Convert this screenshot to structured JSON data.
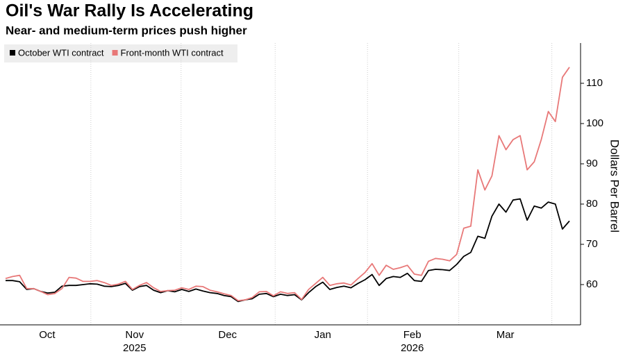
{
  "chart_data": {
    "type": "line",
    "title": "Oil's War Rally Is Accelerating",
    "subtitle": "Near- and medium-term prices push higher",
    "y_axis_label": "Dollars Per Barrel",
    "categories": [
      null,
      null,
      null,
      null,
      null,
      null,
      null,
      null,
      null,
      null,
      null,
      null,
      null,
      null,
      null,
      null,
      null,
      null,
      null,
      null,
      null,
      null,
      null,
      null,
      null,
      null,
      null,
      null,
      null,
      null,
      null,
      null,
      null,
      null,
      null,
      null,
      null,
      null,
      null,
      null,
      null,
      null,
      null,
      null,
      null,
      null,
      null,
      null,
      null,
      null,
      null,
      null,
      null,
      null,
      null,
      null,
      null,
      null,
      null,
      null,
      null,
      null,
      null,
      null,
      null,
      null,
      null,
      null,
      null,
      null,
      null,
      null,
      null,
      null,
      null,
      null,
      null,
      null,
      null,
      null,
      null
    ],
    "xticks": [
      {
        "value": 5.9,
        "label": "Oct"
      },
      {
        "value": 18.3,
        "label": "Nov"
      },
      {
        "value": 31.5,
        "label": "Dec"
      },
      {
        "value": 45.0,
        "label": "Jan"
      },
      {
        "value": 57.7,
        "label": "Feb"
      },
      {
        "value": 70.9,
        "label": "Mar"
      }
    ],
    "year_labels": [
      {
        "value": 18.3,
        "label": "2025"
      },
      {
        "value": 57.7,
        "label": "2026"
      }
    ],
    "ylim": [
      50,
      120
    ],
    "yticks": [
      60,
      70,
      80,
      90,
      100,
      110
    ],
    "grid": true,
    "legend": "top-left",
    "series": [
      {
        "name": "October WTI contract",
        "color": "#000000",
        "values": [
          61,
          61,
          60.7,
          58.8,
          59,
          58.3,
          57.9,
          58.1,
          59.6,
          59.8,
          59.8,
          60,
          60.2,
          60.1,
          59.6,
          59.5,
          59.8,
          60.3,
          58.6,
          59.5,
          59.8,
          58.6,
          58,
          58.5,
          58.2,
          58.8,
          58.3,
          58.9,
          58.4,
          58,
          57.8,
          57.3,
          57,
          55.8,
          56.2,
          56.5,
          57.6,
          57.8,
          57,
          57.6,
          57.3,
          57.5,
          56.2,
          58,
          59.5,
          60.6,
          58.8,
          59.3,
          59.6,
          59.2,
          60.3,
          61.2,
          62.5,
          59.8,
          61.5,
          62,
          61.8,
          62.8,
          61,
          60.8,
          63.5,
          63.8,
          63.7,
          63.5,
          65,
          67,
          68,
          72,
          71.5,
          77,
          80,
          78,
          81,
          81.3,
          76,
          79.5,
          79,
          80.5,
          80,
          73.8,
          75.8
        ]
      },
      {
        "name": "Front-month WTI contract",
        "color": "#e87878",
        "values": [
          61.5,
          62,
          62.3,
          59,
          59,
          58.3,
          57.5,
          57.8,
          59,
          61.8,
          61.6,
          60.8,
          60.8,
          61,
          60.5,
          59.8,
          60.1,
          60.8,
          58.8,
          59.8,
          60.5,
          59.2,
          58.3,
          58.5,
          58.6,
          59.2,
          58.8,
          59.6,
          59.5,
          58.6,
          58.2,
          57.7,
          57.3,
          56,
          56.2,
          56.8,
          58.2,
          58.3,
          57.2,
          58.2,
          57.8,
          58,
          56.3,
          58.8,
          60.3,
          61.8,
          59.8,
          60.2,
          60.4,
          59.9,
          61.5,
          63,
          65.2,
          62.3,
          64.8,
          63.8,
          64.2,
          64.8,
          62.6,
          62.3,
          65.8,
          66.5,
          66.3,
          65.9,
          67.5,
          74,
          74.5,
          88.5,
          83.5,
          87,
          97,
          93.5,
          96,
          97,
          88.5,
          90.5,
          96,
          103,
          100.5,
          111.5,
          114
        ]
      }
    ]
  }
}
